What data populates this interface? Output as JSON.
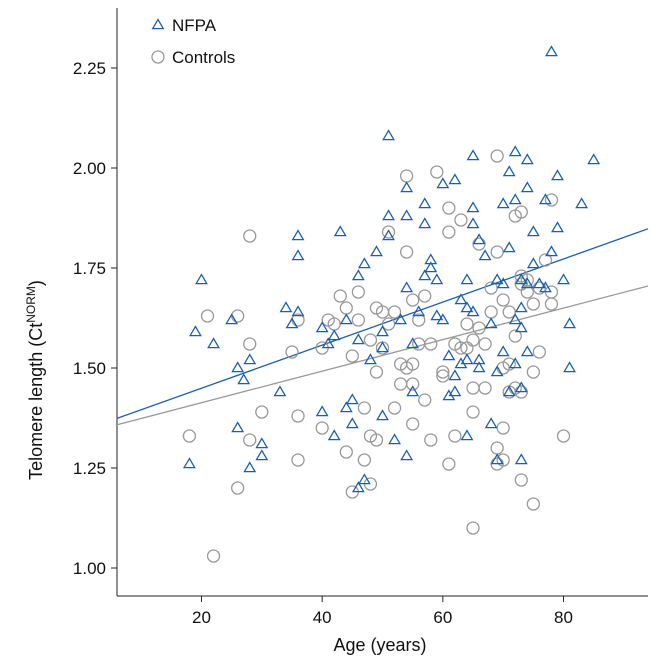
{
  "chart_data": {
    "type": "scatter",
    "xlabel": "Age (years)",
    "ylabel": {
      "main": "Telomere length (Ct",
      "sup": "NORM",
      "close": ")"
    },
    "xlim": [
      6,
      94
    ],
    "ylim": [
      0.93,
      2.4
    ],
    "x_ticks": [
      20,
      40,
      60,
      80
    ],
    "y_ticks": [
      1.0,
      1.25,
      1.5,
      1.75,
      2.0,
      2.25
    ],
    "y_tick_labels": [
      "1.00",
      "1.25",
      "1.50",
      "1.75",
      "2.00",
      "2.25"
    ],
    "grid": false,
    "legend_position": "top-left",
    "series": [
      {
        "name": "NFPA",
        "marker": "triangle",
        "color": "#1b5faa",
        "trend": {
          "x": [
            6,
            94
          ],
          "y": [
            1.374,
            1.848
          ]
        },
        "points": [
          [
            18,
            1.26
          ],
          [
            19,
            1.59
          ],
          [
            20,
            1.72
          ],
          [
            22,
            1.56
          ],
          [
            25,
            1.62
          ],
          [
            26,
            1.5
          ],
          [
            26,
            1.35
          ],
          [
            27,
            1.47
          ],
          [
            28,
            1.52
          ],
          [
            28,
            1.25
          ],
          [
            30,
            1.31
          ],
          [
            30,
            1.28
          ],
          [
            33,
            1.44
          ],
          [
            34,
            1.65
          ],
          [
            35,
            1.61
          ],
          [
            36,
            1.83
          ],
          [
            36,
            1.78
          ],
          [
            36,
            1.64
          ],
          [
            40,
            1.39
          ],
          [
            40,
            1.6
          ],
          [
            41,
            1.56
          ],
          [
            42,
            1.33
          ],
          [
            42,
            1.58
          ],
          [
            43,
            1.84
          ],
          [
            44,
            1.62
          ],
          [
            44,
            1.4
          ],
          [
            45,
            1.36
          ],
          [
            45,
            1.42
          ],
          [
            46,
            1.73
          ],
          [
            46,
            1.57
          ],
          [
            47,
            1.76
          ],
          [
            47,
            1.22
          ],
          [
            48,
            1.52
          ],
          [
            49,
            1.79
          ],
          [
            50,
            1.59
          ],
          [
            50,
            1.55
          ],
          [
            50,
            1.38
          ],
          [
            51,
            1.88
          ],
          [
            51,
            1.83
          ],
          [
            51,
            2.08
          ],
          [
            52,
            1.32
          ],
          [
            53,
            1.62
          ],
          [
            54,
            1.95
          ],
          [
            54,
            1.88
          ],
          [
            54,
            1.7
          ],
          [
            54,
            1.28
          ],
          [
            55,
            1.56
          ],
          [
            55,
            1.44
          ],
          [
            56,
            1.64
          ],
          [
            57,
            1.73
          ],
          [
            57,
            1.91
          ],
          [
            57,
            1.86
          ],
          [
            58,
            1.75
          ],
          [
            58,
            1.77
          ],
          [
            59,
            1.63
          ],
          [
            59,
            1.72
          ],
          [
            60,
            1.96
          ],
          [
            60,
            1.62
          ],
          [
            61,
            1.53
          ],
          [
            61,
            1.43
          ],
          [
            62,
            1.48
          ],
          [
            62,
            1.44
          ],
          [
            62,
            1.97
          ],
          [
            63,
            1.51
          ],
          [
            63,
            1.67
          ],
          [
            64,
            1.72
          ],
          [
            64,
            1.65
          ],
          [
            64,
            1.52
          ],
          [
            64,
            1.33
          ],
          [
            65,
            2.03
          ],
          [
            65,
            1.9
          ],
          [
            65,
            1.86
          ],
          [
            65,
            1.64
          ],
          [
            66,
            1.82
          ],
          [
            66,
            1.5
          ],
          [
            66,
            1.52
          ],
          [
            67,
            1.78
          ],
          [
            68,
            1.36
          ],
          [
            68,
            1.61
          ],
          [
            69,
            1.49
          ],
          [
            69,
            1.72
          ],
          [
            70,
            1.91
          ],
          [
            70,
            1.71
          ],
          [
            70,
            1.54
          ],
          [
            71,
            1.8
          ],
          [
            71,
            1.99
          ],
          [
            71,
            1.44
          ],
          [
            72,
            2.04
          ],
          [
            72,
            1.92
          ],
          [
            72,
            1.62
          ],
          [
            72,
            1.51
          ],
          [
            73,
            1.65
          ],
          [
            73,
            1.6
          ],
          [
            73,
            1.45
          ],
          [
            73,
            1.27
          ],
          [
            74,
            1.95
          ],
          [
            74,
            2.02
          ],
          [
            74,
            1.71
          ],
          [
            74,
            1.54
          ],
          [
            75,
            1.76
          ],
          [
            75,
            1.84
          ],
          [
            76,
            1.71
          ],
          [
            77,
            1.92
          ],
          [
            77,
            1.7
          ],
          [
            78,
            2.29
          ],
          [
            78,
            1.79
          ],
          [
            79,
            1.98
          ],
          [
            79,
            1.85
          ],
          [
            80,
            1.72
          ],
          [
            81,
            1.61
          ],
          [
            81,
            1.5
          ],
          [
            83,
            1.91
          ],
          [
            85,
            2.02
          ],
          [
            73,
            1.72
          ],
          [
            69,
            1.27
          ],
          [
            46,
            1.2
          ]
        ]
      },
      {
        "name": "Controls",
        "marker": "circle",
        "color": "#999999",
        "trend": {
          "x": [
            6,
            94
          ],
          "y": [
            1.358,
            1.705
          ]
        },
        "points": [
          [
            18,
            1.33
          ],
          [
            21,
            1.63
          ],
          [
            22,
            1.03
          ],
          [
            26,
            1.63
          ],
          [
            26,
            1.2
          ],
          [
            28,
            1.83
          ],
          [
            28,
            1.56
          ],
          [
            28,
            1.32
          ],
          [
            30,
            1.39
          ],
          [
            35,
            1.54
          ],
          [
            36,
            1.38
          ],
          [
            36,
            1.27
          ],
          [
            36,
            1.62
          ],
          [
            40,
            1.55
          ],
          [
            40,
            1.35
          ],
          [
            41,
            1.62
          ],
          [
            42,
            1.61
          ],
          [
            43,
            1.68
          ],
          [
            44,
            1.65
          ],
          [
            44,
            1.29
          ],
          [
            45,
            1.19
          ],
          [
            45,
            1.53
          ],
          [
            46,
            1.69
          ],
          [
            46,
            1.62
          ],
          [
            47,
            1.4
          ],
          [
            47,
            1.27
          ],
          [
            48,
            1.33
          ],
          [
            48,
            1.21
          ],
          [
            48,
            1.57
          ],
          [
            49,
            1.49
          ],
          [
            49,
            1.32
          ],
          [
            49,
            1.65
          ],
          [
            50,
            1.64
          ],
          [
            50,
            1.55
          ],
          [
            51,
            1.84
          ],
          [
            51,
            1.61
          ],
          [
            52,
            1.64
          ],
          [
            52,
            1.4
          ],
          [
            53,
            1.51
          ],
          [
            53,
            1.46
          ],
          [
            54,
            1.79
          ],
          [
            54,
            1.98
          ],
          [
            54,
            1.5
          ],
          [
            55,
            1.67
          ],
          [
            55,
            1.46
          ],
          [
            55,
            1.51
          ],
          [
            55,
            1.36
          ],
          [
            56,
            1.62
          ],
          [
            56,
            1.56
          ],
          [
            57,
            1.42
          ],
          [
            57,
            1.68
          ],
          [
            58,
            1.32
          ],
          [
            58,
            1.56
          ],
          [
            59,
            1.99
          ],
          [
            60,
            1.49
          ],
          [
            60,
            1.48
          ],
          [
            61,
            1.9
          ],
          [
            61,
            1.26
          ],
          [
            62,
            1.56
          ],
          [
            62,
            1.33
          ],
          [
            63,
            1.87
          ],
          [
            63,
            1.55
          ],
          [
            64,
            1.61
          ],
          [
            64,
            1.55
          ],
          [
            65,
            1.39
          ],
          [
            65,
            1.1
          ],
          [
            65,
            1.45
          ],
          [
            65,
            1.57
          ],
          [
            66,
            1.81
          ],
          [
            66,
            1.6
          ],
          [
            67,
            1.56
          ],
          [
            67,
            1.45
          ],
          [
            68,
            1.7
          ],
          [
            68,
            1.64
          ],
          [
            69,
            2.03
          ],
          [
            69,
            1.79
          ],
          [
            69,
            1.3
          ],
          [
            69,
            1.26
          ],
          [
            70,
            1.67
          ],
          [
            70,
            1.5
          ],
          [
            70,
            1.35
          ],
          [
            71,
            1.44
          ],
          [
            71,
            1.64
          ],
          [
            71,
            1.51
          ],
          [
            72,
            1.88
          ],
          [
            72,
            1.58
          ],
          [
            72,
            1.45
          ],
          [
            73,
            1.89
          ],
          [
            73,
            1.73
          ],
          [
            73,
            1.71
          ],
          [
            73,
            1.22
          ],
          [
            73,
            1.44
          ],
          [
            74,
            1.72
          ],
          [
            74,
            1.69
          ],
          [
            75,
            1.66
          ],
          [
            75,
            1.49
          ],
          [
            75,
            1.16
          ],
          [
            76,
            1.7
          ],
          [
            76,
            1.54
          ],
          [
            77,
            1.77
          ],
          [
            78,
            1.92
          ],
          [
            78,
            1.69
          ],
          [
            78,
            1.66
          ],
          [
            80,
            1.33
          ],
          [
            70,
            1.27
          ],
          [
            61,
            1.84
          ]
        ]
      }
    ]
  }
}
